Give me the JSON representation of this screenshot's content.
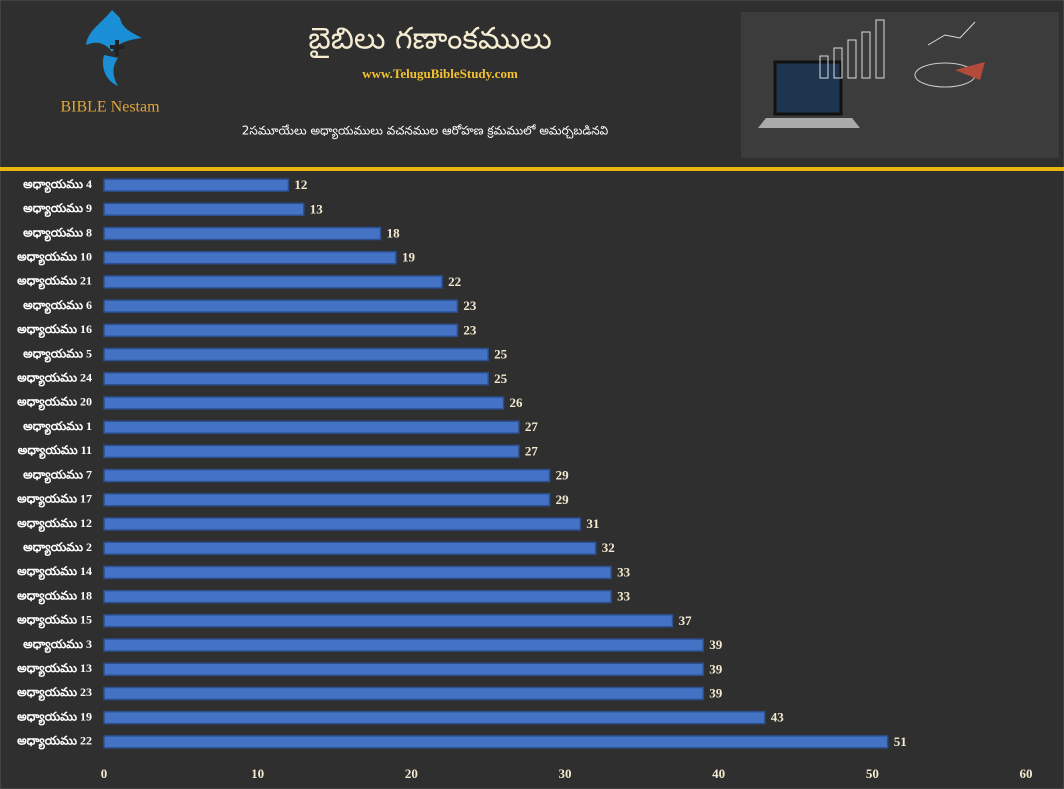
{
  "header": {
    "logo_text": "BIBLE Nestam",
    "title": "బైబిలు గణాంకములు",
    "website": "www.TeluguBibleStudy.com",
    "subtitle": "2సమూయేలు అధ్యాయములు వచనముల ఆరోహణ క్రమములో అమర్చబడినవి"
  },
  "chart_data": {
    "type": "hbar",
    "categories": [
      "అధ్యాయము 4",
      "అధ్యాయము 9",
      "అధ్యాయము 8",
      "అధ్యాయము 10",
      "అధ్యాయము 21",
      "అధ్యాయము 6",
      "అధ్యాయము 16",
      "అధ్యాయము 5",
      "అధ్యాయము 24",
      "అధ్యాయము 20",
      "అధ్యాయము 1",
      "అధ్యాయము 11",
      "అధ్యాయము 7",
      "అధ్యాయము 17",
      "అధ్యాయము 12",
      "అధ్యాయము 2",
      "అధ్యాయము 14",
      "అధ్యాయము 18",
      "అధ్యాయము 15",
      "అధ్యాయము 3",
      "అధ్యాయము 13",
      "అధ్యాయము 23",
      "అధ్యాయము 19",
      "అధ్యాయము 22"
    ],
    "values": [
      12,
      13,
      18,
      19,
      22,
      23,
      23,
      25,
      25,
      26,
      27,
      27,
      29,
      29,
      31,
      32,
      33,
      33,
      37,
      39,
      39,
      39,
      43,
      51
    ],
    "color": "#4472c4",
    "xlim": [
      0,
      60
    ],
    "xticks": [
      0,
      10,
      20,
      30,
      40,
      50,
      60
    ],
    "grid": false
  }
}
